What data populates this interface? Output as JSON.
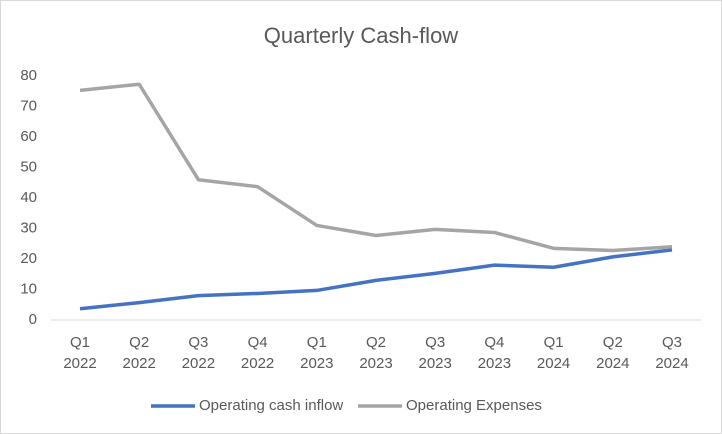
{
  "chart_data": {
    "type": "line",
    "title": "Quarterly Cash-flow",
    "categories": [
      "Q1 2022",
      "Q2 2022",
      "Q3 2022",
      "Q4 2022",
      "Q1 2023",
      "Q2 2023",
      "Q3 2023",
      "Q4 2023",
      "Q1 2024",
      "Q2 2024",
      "Q3 2024"
    ],
    "series": [
      {
        "name": "Operating cash inflow",
        "color": "#4472c4",
        "values": [
          3.7,
          5.7,
          8,
          8.7,
          9.7,
          13,
          15.3,
          18,
          17.3,
          20.7,
          23
        ]
      },
      {
        "name": "Operating Expenses",
        "color": "#a5a5a5",
        "values": [
          75.3,
          77.3,
          46,
          43.7,
          31,
          27.7,
          29.7,
          28.7,
          23.5,
          22.8,
          24
        ]
      }
    ],
    "ylim": [
      0,
      80
    ],
    "yticks": [
      0,
      10,
      20,
      30,
      40,
      50,
      60,
      70,
      80
    ],
    "grid": false,
    "legend": "bottom"
  }
}
